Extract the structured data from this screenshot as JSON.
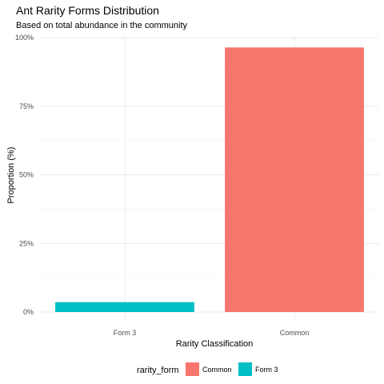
{
  "chart_data": {
    "type": "bar",
    "title": "Ant Rarity Forms Distribution",
    "subtitle": "Based on total abundance in the community",
    "xlabel": "Rarity Classification",
    "ylabel": "Proportion (%)",
    "categories": [
      "Form 3",
      "Common"
    ],
    "values": [
      3.6,
      96.4
    ],
    "colors": [
      "#00BFC4",
      "#F8766D"
    ],
    "ylim": [
      0,
      100
    ],
    "yticks": [
      0,
      25,
      50,
      75,
      100
    ],
    "ytick_labels": [
      "0%",
      "25%",
      "50%",
      "75%",
      "100%"
    ],
    "grid": true,
    "legend": {
      "position": "bottom",
      "title": "rarity_form",
      "entries": [
        {
          "label": "Common",
          "color": "#F8766D"
        },
        {
          "label": "Form 3",
          "color": "#00BFC4"
        }
      ]
    }
  }
}
